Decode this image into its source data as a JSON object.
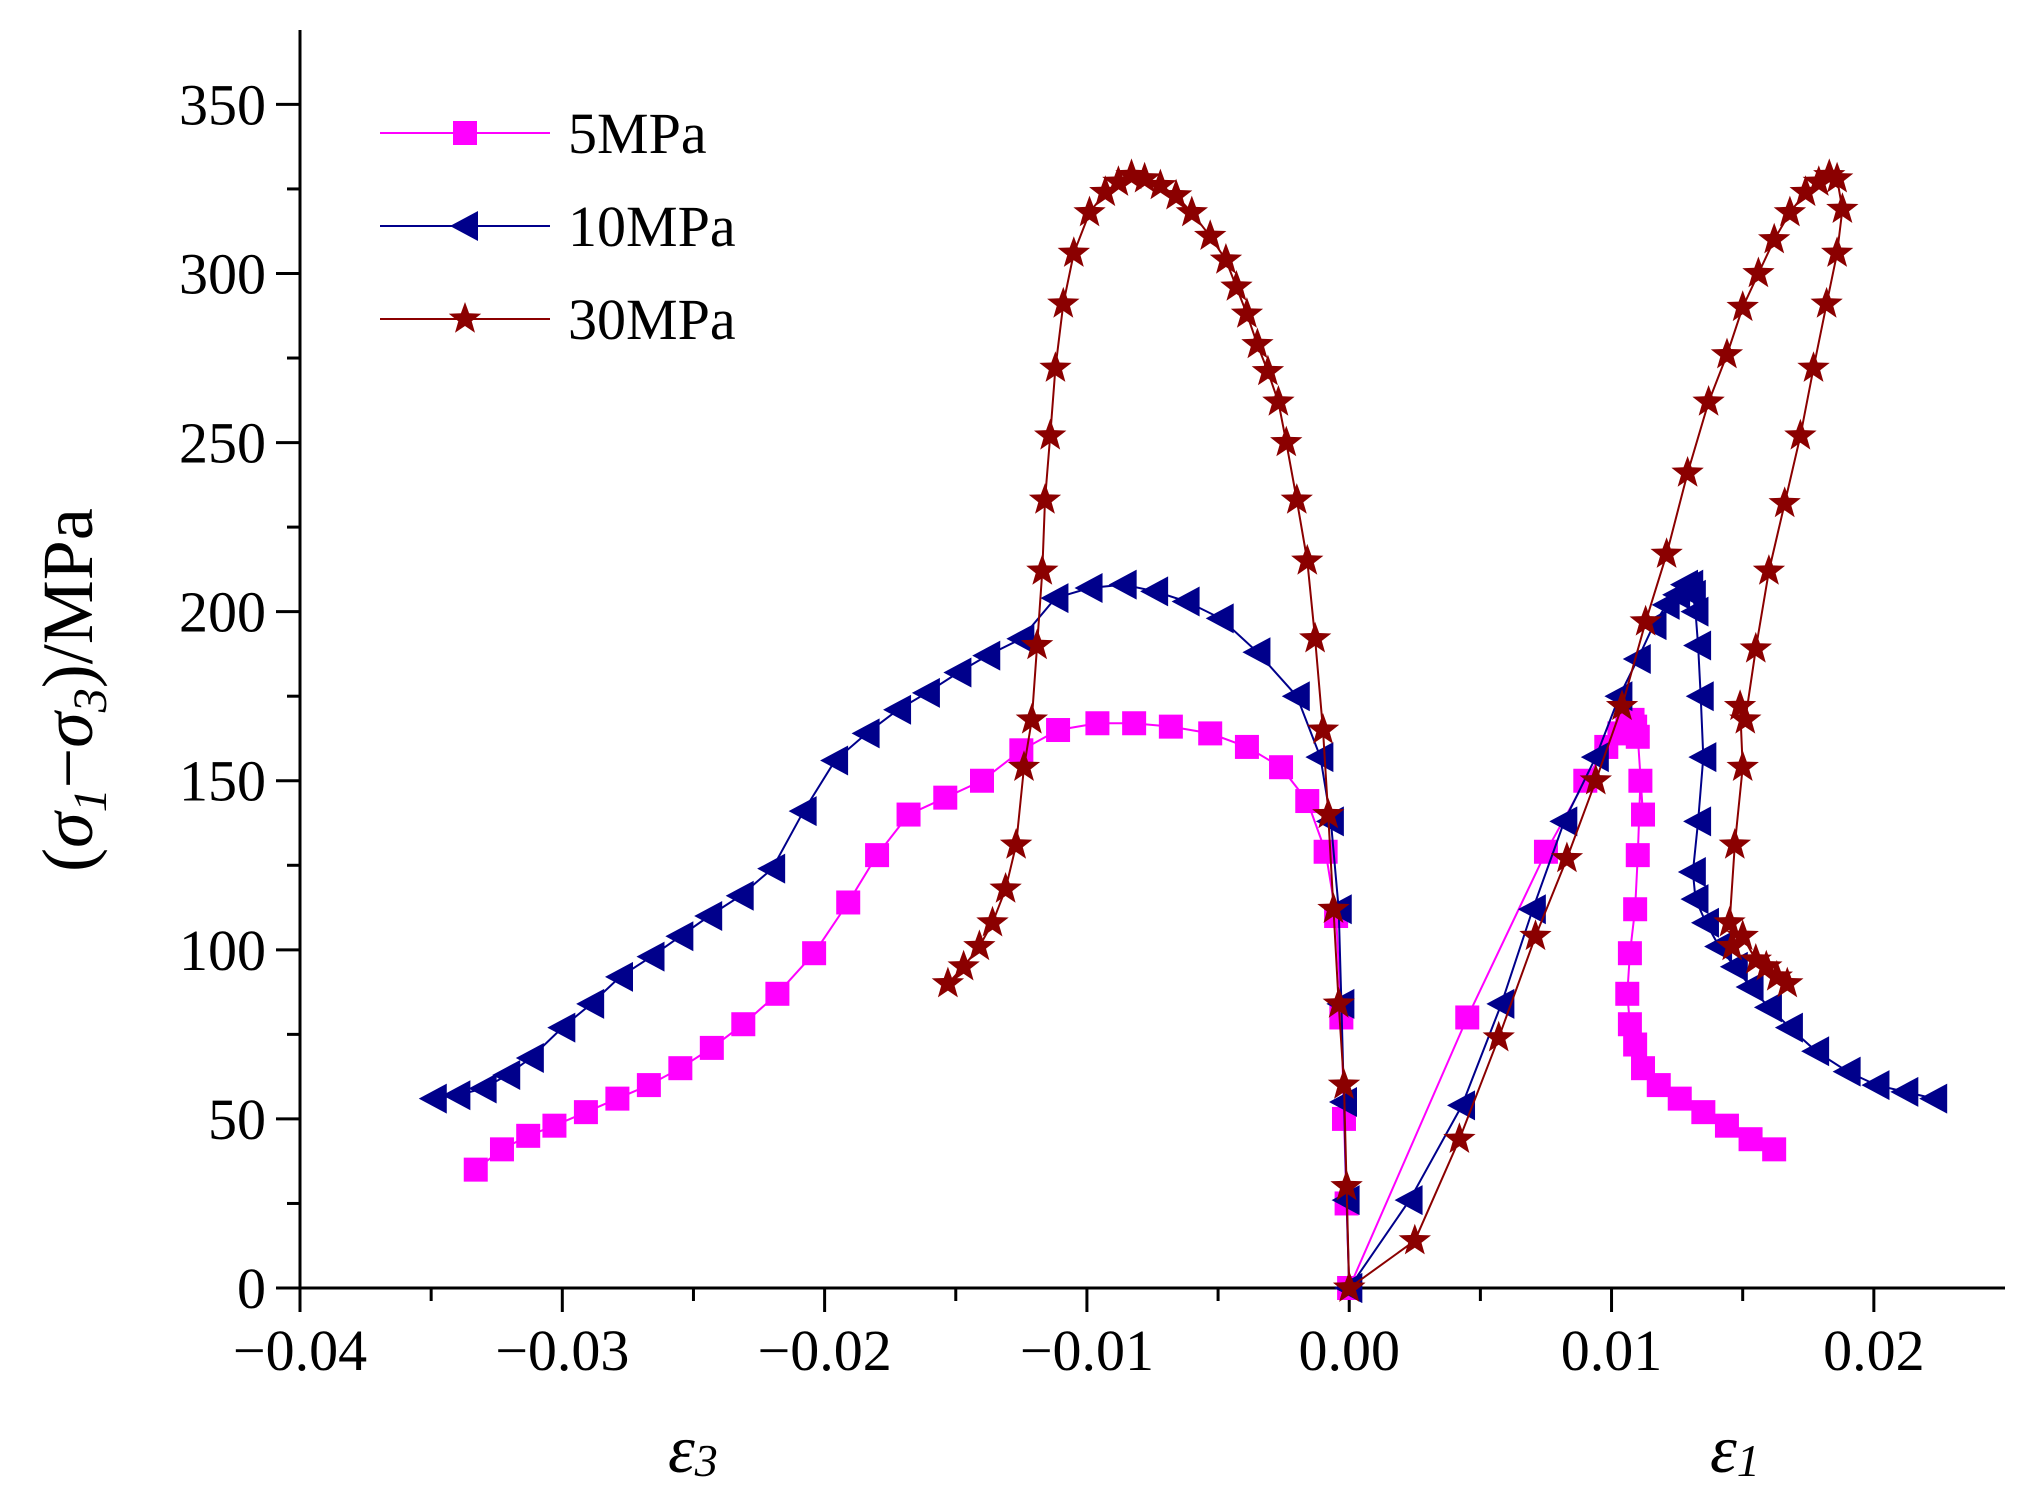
{
  "chart_data": {
    "type": "line",
    "title": "",
    "ylabel": {
      "open": "(",
      "s1": "σ",
      "sub1": "1",
      "minus": "−",
      "s3": "σ",
      "sub3": "3",
      "tail": ")/MPa"
    },
    "xlabel_left": {
      "eps": "ε",
      "sub": "3"
    },
    "xlabel_right": {
      "eps": "ε",
      "sub": "1"
    },
    "xlim": [
      -0.04,
      0.025
    ],
    "ylim": [
      0,
      372
    ],
    "xticks": [
      -0.04,
      -0.03,
      -0.02,
      -0.01,
      0.0,
      0.01,
      0.02
    ],
    "xtick_labels": [
      "−0.04",
      "−0.03",
      "−0.02",
      "−0.01",
      "0.00",
      "0.01",
      "0.02"
    ],
    "yticks": [
      0,
      50,
      100,
      150,
      200,
      250,
      300,
      350
    ],
    "ytick_labels": [
      "0",
      "50",
      "100",
      "150",
      "200",
      "250",
      "300",
      "350"
    ],
    "legend_position": "top-left",
    "series": [
      {
        "name": "5MPa",
        "color": "#ff00ff",
        "marker": "square",
        "lateral": {
          "x": [
            -0.0333,
            -0.0323,
            -0.0313,
            -0.0303,
            -0.0291,
            -0.0279,
            -0.0267,
            -0.0255,
            -0.0243,
            -0.0231,
            -0.0218,
            -0.0204,
            -0.0191,
            -0.018,
            -0.0168,
            -0.0154,
            -0.014,
            -0.0125,
            -0.0111,
            -0.0096,
            -0.0082,
            -0.0068,
            -0.0053,
            -0.0039,
            -0.0026,
            -0.0016,
            -0.0009,
            -0.0005,
            -0.0003,
            -0.0002,
            -0.0001,
            0.0
          ],
          "y": [
            35,
            41,
            45,
            48,
            52,
            56,
            60,
            65,
            71,
            78,
            87,
            99,
            114,
            128,
            140,
            145,
            150,
            159,
            165,
            167,
            167,
            166,
            164,
            160,
            154,
            144,
            129,
            110,
            80,
            50,
            25,
            0
          ]
        },
        "axial": {
          "x": [
            0.0,
            0.0045,
            0.0075,
            0.009,
            0.0098,
            0.0103,
            0.0106,
            0.0108,
            0.0109,
            0.011,
            0.0112,
            0.0111,
            0.011,
            0.0109,
            0.0107,
            0.0106,
            0.0107,
            0.0109,
            0.0112,
            0.0118,
            0.0126,
            0.0135,
            0.0144,
            0.0153,
            0.0162
          ],
          "y": [
            0,
            80,
            129,
            150,
            160,
            164,
            167,
            168,
            166,
            163,
            140,
            150,
            128,
            112,
            99,
            87,
            78,
            72,
            65,
            60,
            56,
            52,
            48,
            44,
            41
          ]
        }
      },
      {
        "name": "10MPa",
        "color": "#00008b",
        "marker": "triangle-left",
        "lateral": {
          "x": [
            -0.0349,
            -0.034,
            -0.033,
            -0.0321,
            -0.0312,
            -0.03,
            -0.0289,
            -0.0278,
            -0.0266,
            -0.0255,
            -0.0244,
            -0.0232,
            -0.022,
            -0.0208,
            -0.0196,
            -0.0184,
            -0.0172,
            -0.0161,
            -0.0149,
            -0.0138,
            -0.0125,
            -0.0112,
            -0.0099,
            -0.0086,
            -0.0074,
            -0.0062,
            -0.0049,
            -0.0035,
            -0.002,
            -0.0011,
            -0.0007,
            -0.0004,
            -0.0003,
            -0.0002,
            -0.0001,
            0.0
          ],
          "y": [
            56,
            57,
            59,
            63,
            68,
            77,
            84,
            92,
            98,
            104,
            110,
            116,
            124,
            141,
            156,
            164,
            171,
            176,
            182,
            187,
            192,
            204,
            207,
            208,
            206,
            203,
            198,
            188,
            175,
            157,
            138,
            112,
            84,
            55,
            26,
            0
          ]
        },
        "axial": {
          "x": [
            0.0,
            0.0023,
            0.0043,
            0.0058,
            0.007,
            0.0082,
            0.0094,
            0.0103,
            0.011,
            0.0116,
            0.0121,
            0.0125,
            0.0128,
            0.013,
            0.0131,
            0.0132,
            0.0133,
            0.0134,
            0.0135,
            0.0133,
            0.0131,
            0.0132,
            0.0136,
            0.0141,
            0.0147,
            0.0153,
            0.016,
            0.0168,
            0.0178,
            0.019,
            0.0201,
            0.0212,
            0.0223
          ],
          "y": [
            0,
            26,
            54,
            84,
            112,
            138,
            157,
            175,
            186,
            196,
            202,
            205,
            208,
            208,
            205,
            200,
            190,
            175,
            157,
            138,
            123,
            115,
            108,
            101,
            95,
            89,
            83,
            77,
            70,
            64,
            60,
            58,
            56
          ]
        }
      },
      {
        "name": "30MPa",
        "color": "#8b0000",
        "marker": "star",
        "lateral": {
          "x": [
            -0.0153,
            -0.0147,
            -0.0141,
            -0.0136,
            -0.0131,
            -0.0127,
            -0.0124,
            -0.0121,
            -0.0119,
            -0.0117,
            -0.0116,
            -0.0114,
            -0.0112,
            -0.0109,
            -0.0105,
            -0.0099,
            -0.0093,
            -0.0088,
            -0.0083,
            -0.0078,
            -0.0072,
            -0.0066,
            -0.006,
            -0.0053,
            -0.0047,
            -0.0043,
            -0.0039,
            -0.0035,
            -0.0031,
            -0.0027,
            -0.0024,
            -0.002,
            -0.0016,
            -0.0013,
            -0.001,
            -0.0008,
            -0.0006,
            -0.0004,
            -0.0002,
            -0.0001,
            0.0
          ],
          "y": [
            90,
            95,
            101,
            108,
            118,
            131,
            154,
            168,
            190,
            212,
            233,
            252,
            272,
            291,
            306,
            318,
            324,
            327,
            329,
            328,
            326,
            323,
            318,
            311,
            304,
            296,
            288,
            279,
            271,
            262,
            250,
            233,
            215,
            192,
            165,
            140,
            112,
            84,
            60,
            30,
            0
          ]
        },
        "axial": {
          "x": [
            0.0,
            0.0025,
            0.0042,
            0.0057,
            0.0071,
            0.0083,
            0.0094,
            0.0104,
            0.0113,
            0.0121,
            0.0129,
            0.0137,
            0.0144,
            0.015,
            0.0156,
            0.0162,
            0.0168,
            0.0174,
            0.0179,
            0.0183,
            0.0186,
            0.0188,
            0.0186,
            0.0182,
            0.0177,
            0.0172,
            0.0166,
            0.016,
            0.0155,
            0.0151,
            0.0149,
            0.015,
            0.0147,
            0.0145,
            0.0146,
            0.015,
            0.0155,
            0.0159,
            0.0163,
            0.0167
          ],
          "y": [
            0,
            14,
            44,
            74,
            104,
            127,
            150,
            172,
            197,
            217,
            241,
            262,
            276,
            290,
            300,
            310,
            318,
            324,
            327,
            329,
            328,
            319,
            306,
            291,
            272,
            252,
            232,
            212,
            189,
            168,
            172,
            154,
            131,
            108,
            101,
            104,
            97,
            95,
            92,
            90
          ]
        }
      }
    ]
  }
}
